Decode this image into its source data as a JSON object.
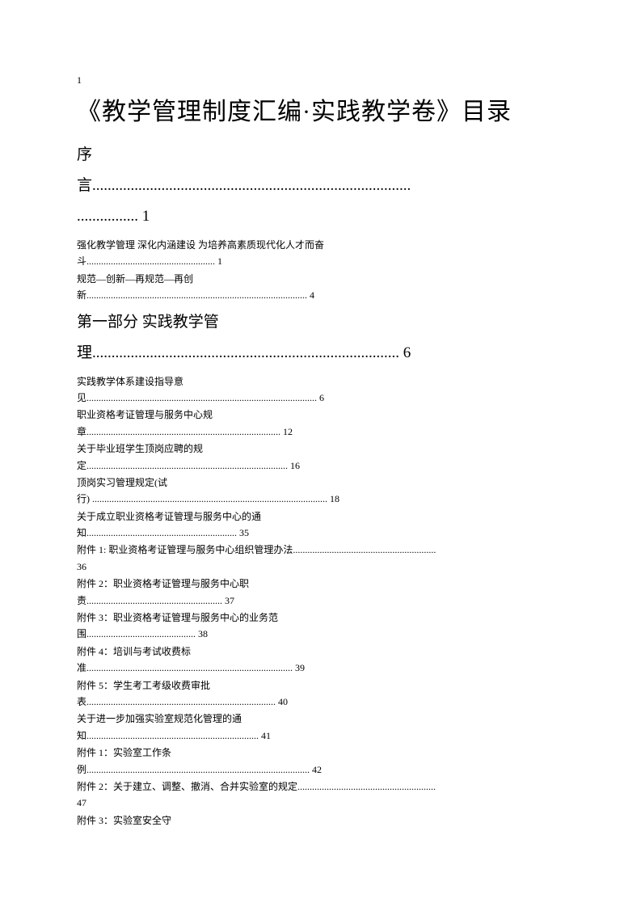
{
  "page_number": "1",
  "main_title": "《教学管理制度汇编·实践教学卷》目录",
  "sections": {
    "preface": {
      "heading_line1": "序",
      "heading_line2": "言...................................................................................",
      "heading_line3": "................ 1",
      "entries": [
        {
          "line1": "强化教学管理 深化内涵建设 为培养高素质现代化人才而奋",
          "line2": "斗..................................................... 1"
        },
        {
          "line1": "规范—创新—再规范—再创",
          "line2": "新........................................................................................... 4"
        }
      ]
    },
    "part1": {
      "heading_line1": "第一部分 实践教学管",
      "heading_line2": "理................................................................................ 6",
      "entries": [
        {
          "line1": "实践教学体系建设指导意",
          "line2": "见............................................................................................... 6"
        },
        {
          "line1": "职业资格考证管理与服务中心规",
          "line2": "章................................................................................ 12"
        },
        {
          "line1": "关于毕业班学生顶岗应聘的规",
          "line2": "定................................................................................... 16"
        },
        {
          "line1": "顶岗实习管理规定(试",
          "line2": "行) ................................................................................................. 18"
        },
        {
          "line1": "关于成立职业资格考证管理与服务中心的通",
          "line2": "知.............................................................. 35"
        },
        {
          "line1": "附件 1: 职业资格考证管理与服务中心组织管理办法...........................................................",
          "line2": "36"
        },
        {
          "line1": "附件 2：职业资格考证管理与服务中心职",
          "line2": "责........................................................ 37"
        },
        {
          "line1": "附件 3：职业资格考证管理与服务中心的业务范",
          "line2": "围............................................. 38"
        },
        {
          "line1": "附件 4：培训与考试收费标",
          "line2": "准..................................................................................... 39"
        },
        {
          "line1": "附件 5：学生考工考级收费审批",
          "line2": "表.............................................................................. 40"
        },
        {
          "line1": "关于进一步加强实验室规范化管理的通",
          "line2": "知....................................................................... 41"
        },
        {
          "line1": "附件 1：实验室工作条",
          "line2": "例............................................................................................ 42"
        },
        {
          "line1": "附件 2：关于建立、调整、撤消、合并实验室的规定.........................................................",
          "line2": "47"
        },
        {
          "line1": "附件 3：实验室安全守",
          "line2": ""
        }
      ]
    }
  }
}
